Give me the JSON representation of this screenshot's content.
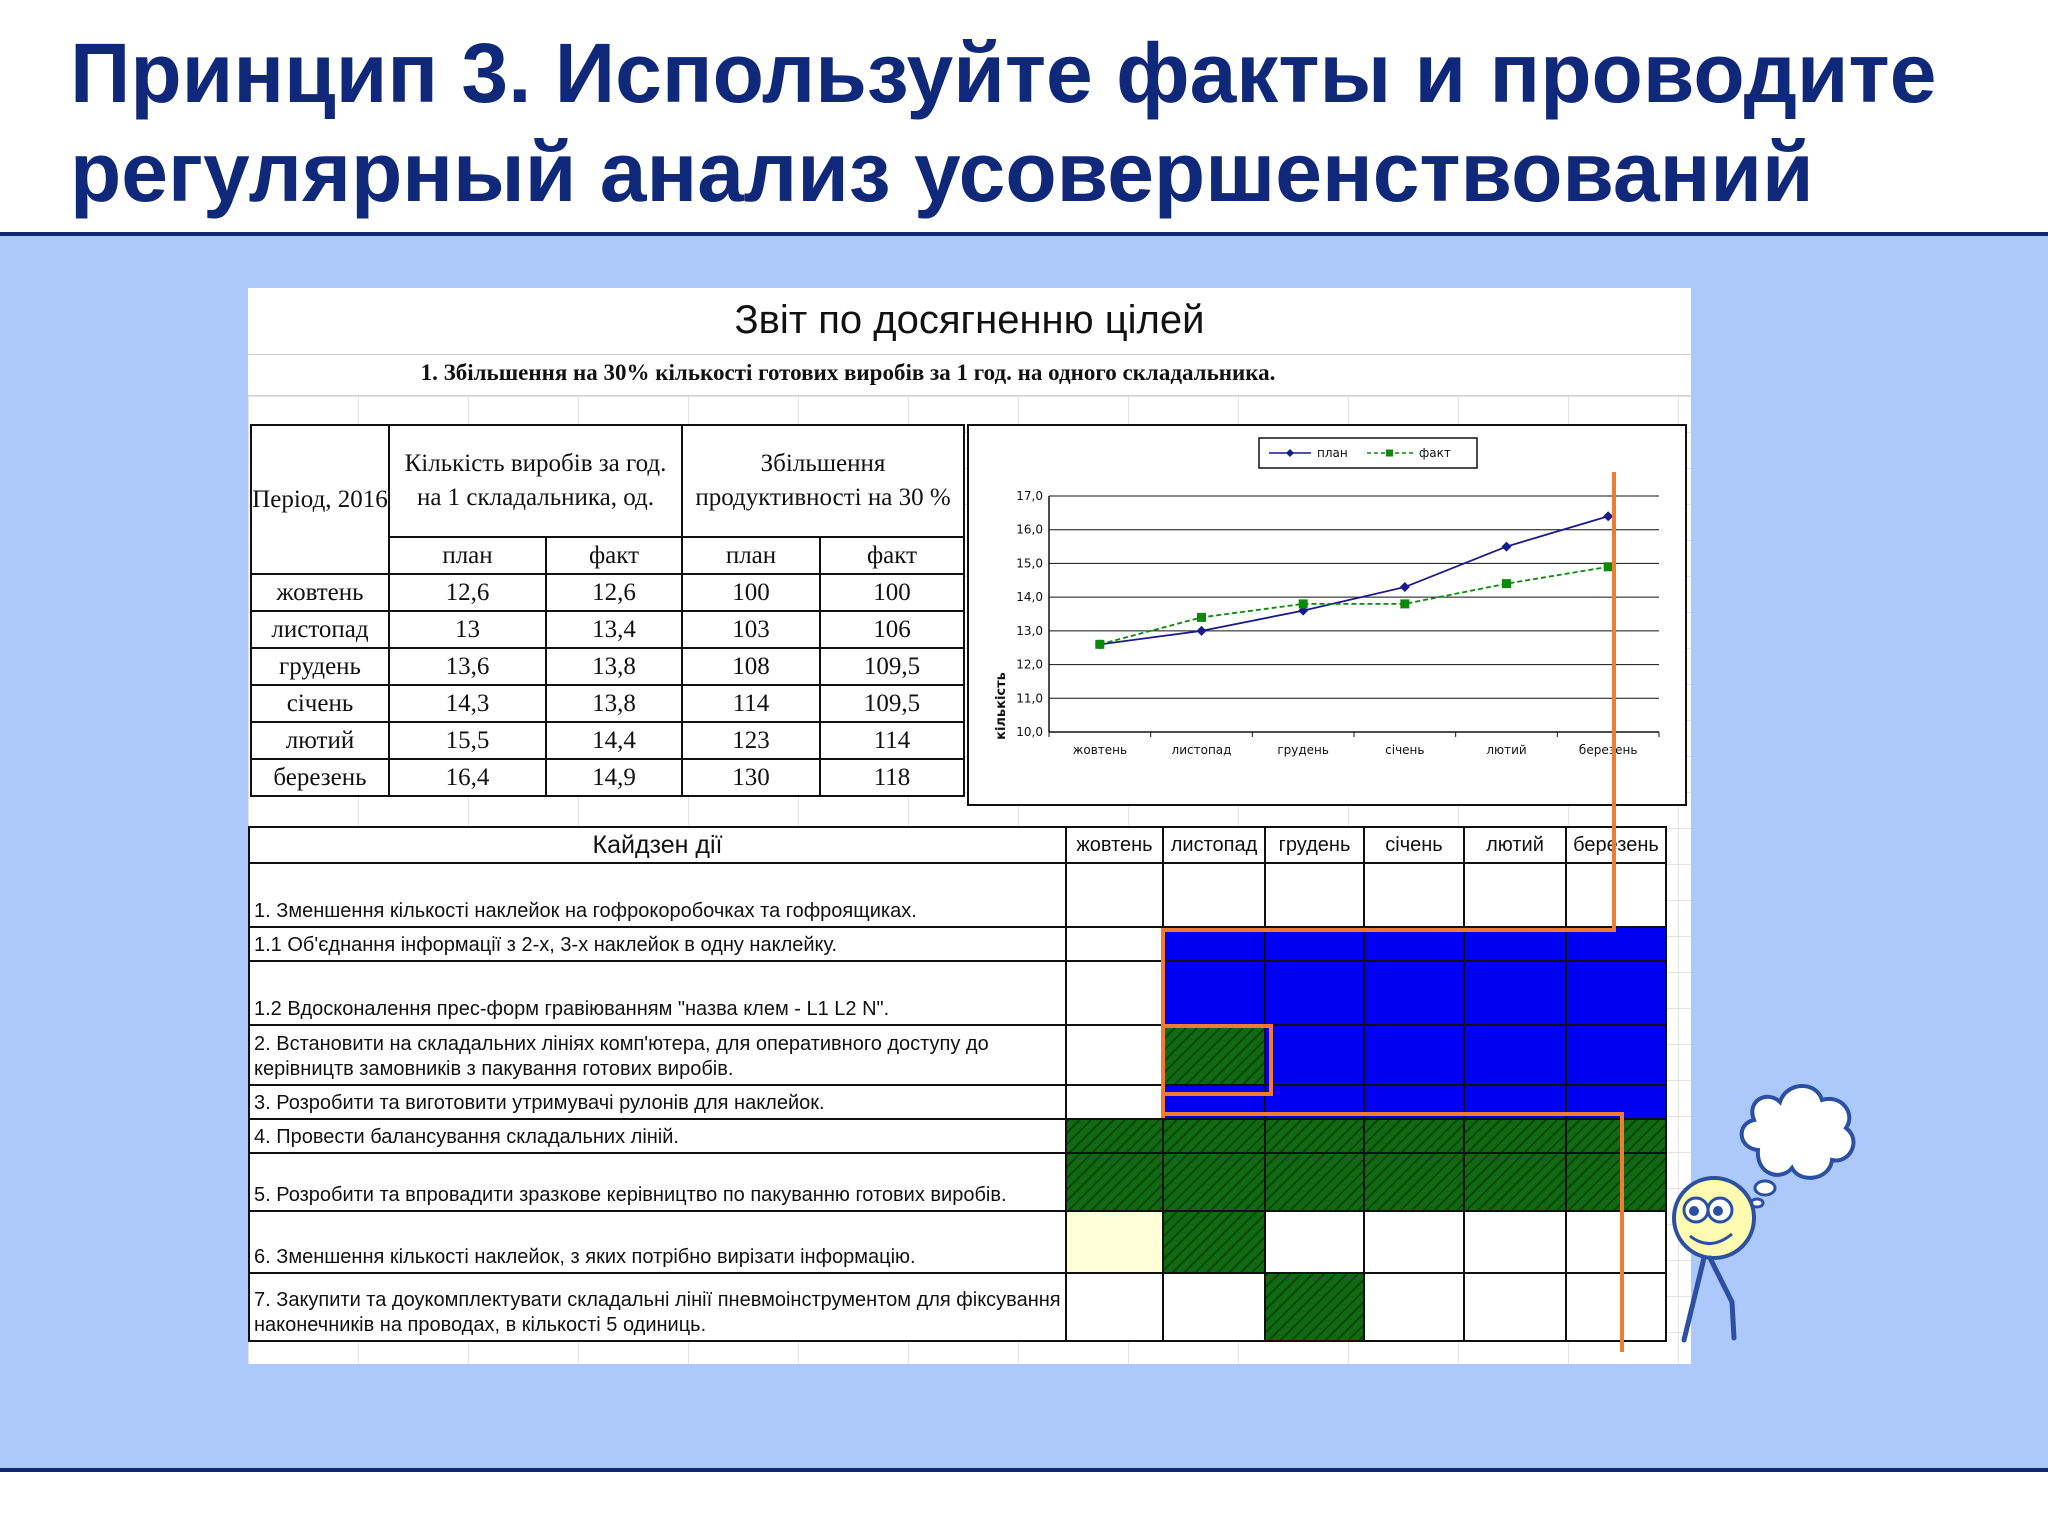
{
  "slide": {
    "title": "Принцип 3. Используйте факты и проводите регулярный анализ усовершенствований"
  },
  "report": {
    "title": "Звіт по досягненню цілей",
    "goal_heading": "1. Збільшення на 30% кількості готових виробів за 1 год. на одного складальника.",
    "table": {
      "col_period": "Період, 2016",
      "col_qty": "Кількість виробів за год. на 1 складальника, од.",
      "col_increase": "Збільшення продуктивності на 30 %",
      "sub_plan": "план",
      "sub_fact": "факт",
      "rows": [
        {
          "month": "жовтень",
          "qty_plan": "12,6",
          "qty_fact": "12,6",
          "inc_plan": "100",
          "inc_fact": "100"
        },
        {
          "month": "листопад",
          "qty_plan": "13",
          "qty_fact": "13,4",
          "inc_plan": "103",
          "inc_fact": "106"
        },
        {
          "month": "грудень",
          "qty_plan": "13,6",
          "qty_fact": "13,8",
          "inc_plan": "108",
          "inc_fact": "109,5"
        },
        {
          "month": "січень",
          "qty_plan": "14,3",
          "qty_fact": "13,8",
          "inc_plan": "114",
          "inc_fact": "109,5"
        },
        {
          "month": "лютий",
          "qty_plan": "15,5",
          "qty_fact": "14,4",
          "inc_plan": "123",
          "inc_fact": "114"
        },
        {
          "month": "березень",
          "qty_plan": "16,4",
          "qty_fact": "14,9",
          "inc_plan": "130",
          "inc_fact": "118"
        }
      ]
    },
    "actions": {
      "header": "Кайдзен дії",
      "months": [
        "жовтень",
        "листопад",
        "грудень",
        "січень",
        "лютий",
        "березень"
      ],
      "items": [
        "1. Зменшення кількості наклейок на гофрокоробочках та гофроящиках.",
        "1.1 Об'єднання інформації з 2-х, 3-х наклейок в одну наклейку.",
        "1.2 Вдосконалення прес-форм гравіюванням \"назва клем - L1 L2 N\".",
        "2. Встановити на складальних лініях комп'ютера, для оперативного доступу до керівництв замовників з пакування готових виробів.",
        "3. Розробити та виготовити утримувачі рулонів для наклейок.",
        "4. Провести балансування складальних ліній.",
        "5. Розробити та впровадити зразкове керівництво по пакуванню готових виробів.",
        "6. Зменшення кількості наклейок, з яких потрібно вирізати інформацію.",
        "7. Закупити та доукомплектувати складальні лінії пневмоінструментом для фіксування наконечників на проводах, в кількості 5 одиниць."
      ]
    }
  },
  "chart_data": {
    "type": "line",
    "categories": [
      "жовтень",
      "листопад",
      "грудень",
      "січень",
      "лютий",
      "березень"
    ],
    "series": [
      {
        "name": "план",
        "values": [
          12.6,
          13.0,
          13.6,
          14.3,
          15.5,
          16.4
        ],
        "color": "#1a1a8c",
        "marker": "diamond",
        "dash": "solid"
      },
      {
        "name": "факт",
        "values": [
          12.6,
          13.4,
          13.8,
          13.8,
          14.4,
          14.9
        ],
        "color": "#0a8a0a",
        "marker": "square",
        "dash": "dashed"
      }
    ],
    "ylabel": "кількість",
    "ylim": [
      10.0,
      17.0
    ],
    "yticks": [
      "10,0",
      "11,0",
      "12,0",
      "13,0",
      "14,0",
      "15,0",
      "16,0",
      "17,0"
    ],
    "grid": true,
    "legend": "top-center"
  },
  "colors": {
    "title": "#10287a",
    "background": "#adc9fb",
    "blue_fill": "#0000f2",
    "green_fill": "#0f6a12",
    "yellow_fill": "#ffffd8",
    "orange_line": "#f07c32"
  }
}
